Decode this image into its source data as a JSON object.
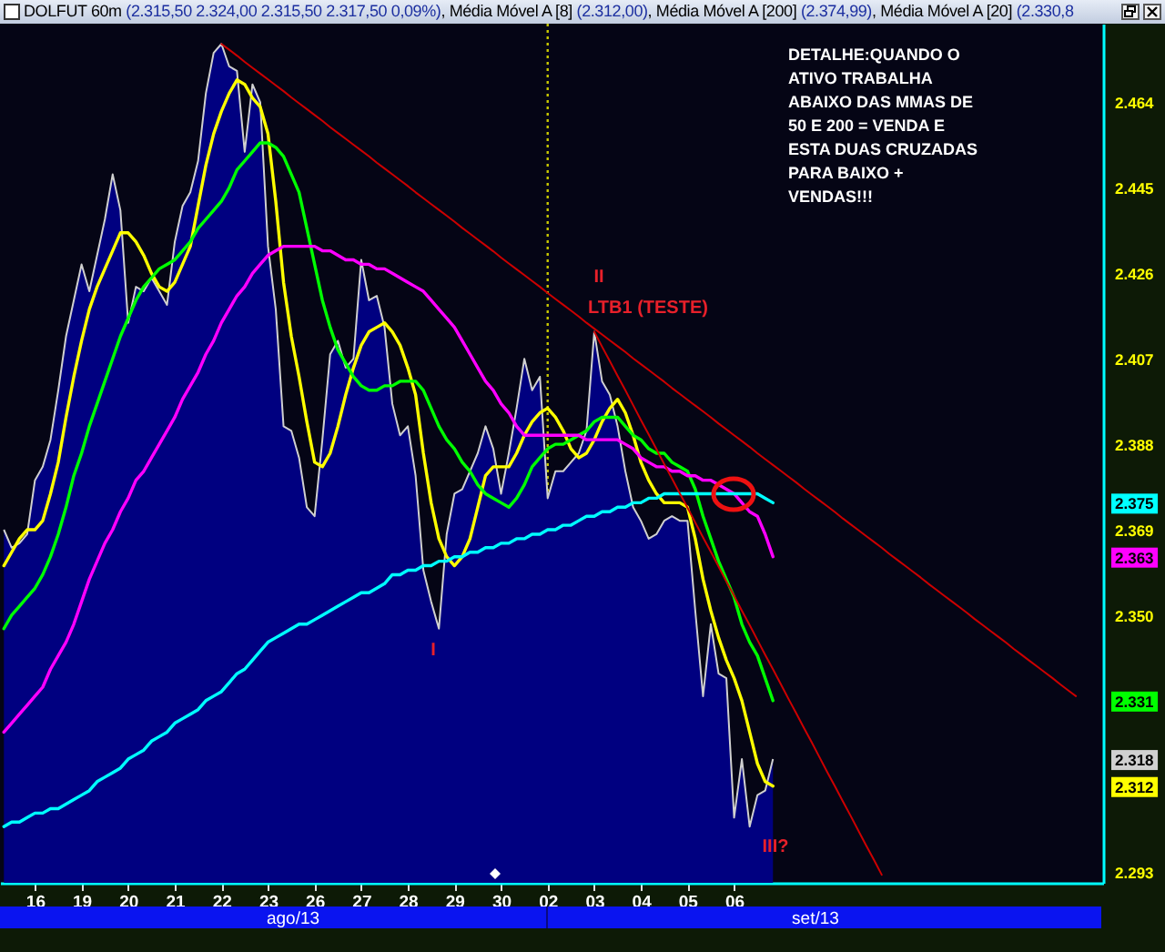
{
  "chart_data": {
    "type": "line",
    "title": "DOLFUT 60m (2.315,50 2.324,00 2.315,50 2.317,50 0,09%), Média Móvel A [8] (2.312,00), Média Móvel A [200] (2.374,99), Média Móvel A [20] (2.330,8",
    "categories": [
      null,
      null,
      null,
      null,
      "16",
      null,
      null,
      null,
      null,
      null,
      "19",
      null,
      null,
      null,
      null,
      null,
      "20",
      null,
      null,
      null,
      null,
      null,
      "21",
      null,
      null,
      null,
      null,
      null,
      "22",
      null,
      null,
      null,
      null,
      null,
      "23",
      null,
      null,
      null,
      null,
      null,
      "26",
      null,
      null,
      null,
      null,
      null,
      "27",
      null,
      null,
      null,
      null,
      null,
      "28",
      null,
      null,
      null,
      null,
      null,
      "29",
      null,
      null,
      null,
      null,
      null,
      "30",
      null,
      null,
      null,
      null,
      null,
      "02",
      null,
      null,
      null,
      null,
      null,
      "03",
      null,
      null,
      null,
      null,
      null,
      "04",
      null,
      null,
      null,
      null,
      null,
      "05",
      null,
      null,
      null,
      null,
      null,
      "06",
      null,
      null,
      null,
      null,
      null,
      null,
      null,
      null,
      null,
      null,
      null,
      null,
      null,
      null,
      null,
      null,
      null,
      null,
      null,
      null,
      null,
      null,
      null,
      null,
      null,
      null,
      null,
      null,
      null,
      null,
      null,
      null,
      null,
      null,
      null,
      null,
      null,
      null,
      null,
      null,
      null,
      null,
      null,
      null,
      null,
      null,
      null
    ],
    "series": [
      {
        "type": "area",
        "color": "#000080",
        "values": [
          2369,
          2365,
          2366,
          2368,
          2380,
          2383,
          2389,
          2400,
          2412,
          2420,
          2428,
          2422,
          2430,
          2438,
          2448,
          2440,
          2415,
          2423,
          2422,
          2425,
          2422,
          2419,
          2433,
          2441,
          2444,
          2451,
          2466,
          2475,
          2477,
          2472,
          2471,
          2453,
          2468,
          2464,
          2432,
          2418,
          2392,
          2391,
          2385,
          2374,
          2372,
          2389,
          2408,
          2411,
          2405,
          2407,
          2429,
          2420,
          2421,
          2414,
          2397,
          2390,
          2392,
          2381,
          2360,
          2353,
          2347,
          2368,
          2377,
          2378,
          2382,
          2386,
          2392,
          2387,
          2377,
          2386,
          2396,
          2407,
          2400,
          2403,
          2376,
          2382,
          2382,
          2384,
          2386,
          2391,
          2413,
          2402,
          2399,
          2392,
          2382,
          2374,
          2371,
          2367,
          2368,
          2371,
          2372,
          2371,
          2371,
          2351,
          2332,
          2348,
          2337,
          2336,
          2305,
          2318,
          2303,
          2310,
          2311,
          2318,
          null,
          null,
          null,
          null,
          null,
          null,
          null,
          null,
          null,
          null,
          null,
          null,
          null,
          null,
          null,
          null,
          null,
          null,
          null,
          null,
          null,
          null,
          null,
          null,
          null,
          null,
          null,
          null,
          null,
          null,
          null,
          null,
          null,
          null,
          null,
          null,
          null,
          null,
          null,
          null,
          null,
          null
        ]
      },
      {
        "color": "#ffff00",
        "values": [
          2361,
          2364,
          2367,
          2369,
          2369,
          2371,
          2377,
          2384,
          2394,
          2403,
          2411,
          2418,
          2423,
          2427,
          2431,
          2435,
          2435,
          2433,
          2430,
          2426,
          2423,
          2422,
          2424,
          2428,
          2432,
          2441,
          2450,
          2457,
          2462,
          2466,
          2469,
          2468,
          2465,
          2463,
          2457,
          2442,
          2424,
          2412,
          2403,
          2393,
          2384,
          2383,
          2386,
          2392,
          2399,
          2405,
          2410,
          2413,
          2414,
          2415,
          2413,
          2410,
          2405,
          2399,
          2386,
          2375,
          2367,
          2363,
          2361,
          2363,
          2367,
          2374,
          2381,
          2383,
          2383,
          2383,
          2386,
          2390,
          2393,
          2395,
          2396,
          2394,
          2391,
          2387,
          2385,
          2386,
          2389,
          2393,
          2396,
          2398,
          2395,
          2390,
          2384,
          2380,
          2377,
          2375,
          2375,
          2375,
          2374,
          2367,
          2358,
          2351,
          2345,
          2340,
          2336,
          2331,
          2324,
          2317,
          2313,
          2312,
          null,
          null,
          null,
          null,
          null,
          null,
          null,
          null,
          null,
          null,
          null,
          null,
          null,
          null,
          null,
          null,
          null,
          null,
          null,
          null,
          null,
          null,
          null,
          null,
          null,
          null,
          null,
          null,
          null,
          null,
          null,
          null,
          null,
          null,
          null,
          null,
          null,
          null,
          null,
          null,
          null,
          null
        ]
      },
      {
        "color": "#00ff00",
        "values": [
          2347,
          2350,
          2352,
          2354,
          2356,
          2359,
          2363,
          2368,
          2374,
          2381,
          2386,
          2392,
          2397,
          2402,
          2407,
          2412,
          2416,
          2420,
          2423,
          2425,
          2427,
          2428,
          2429,
          2431,
          2433,
          2436,
          2438,
          2440,
          2442,
          2445,
          2449,
          2451,
          2453,
          2455,
          2455,
          2454,
          2452,
          2448,
          2444,
          2436,
          2428,
          2420,
          2414,
          2409,
          2406,
          2403,
          2401,
          2400,
          2400,
          2401,
          2401,
          2402,
          2402,
          2402,
          2400,
          2396,
          2392,
          2389,
          2387,
          2384,
          2382,
          2379,
          2377,
          2376,
          2375,
          2374,
          2376,
          2379,
          2383,
          2385,
          2387,
          2388,
          2388,
          2389,
          2390,
          2391,
          2393,
          2394,
          2394,
          2394,
          2392,
          2390,
          2389,
          2387,
          2386,
          2386,
          2384,
          2383,
          2382,
          2378,
          2372,
          2367,
          2362,
          2358,
          2354,
          2348,
          2344,
          2341,
          2336,
          2331,
          null,
          null,
          null,
          null,
          null,
          null,
          null,
          null,
          null,
          null,
          null,
          null,
          null,
          null,
          null,
          null,
          null,
          null,
          null,
          null,
          null,
          null,
          null,
          null,
          null,
          null,
          null,
          null,
          null,
          null,
          null,
          null,
          null,
          null,
          null,
          null,
          null,
          null,
          null,
          null,
          null,
          null
        ]
      },
      {
        "color": "#ff00ff",
        "values": [
          2324,
          2326,
          2328,
          2330,
          2332,
          2334,
          2338,
          2341,
          2344,
          2348,
          2353,
          2358,
          2362,
          2366,
          2369,
          2373,
          2376,
          2380,
          2382,
          2385,
          2388,
          2391,
          2394,
          2398,
          2401,
          2404,
          2408,
          2411,
          2415,
          2418,
          2421,
          2423,
          2426,
          2428,
          2430,
          2431,
          2432,
          2432,
          2432,
          2432,
          2432,
          2431,
          2431,
          2430,
          2429,
          2429,
          2428,
          2428,
          2427,
          2427,
          2426,
          2425,
          2424,
          2423,
          2422,
          2420,
          2418,
          2416,
          2414,
          2411,
          2408,
          2405,
          2402,
          2400,
          2397,
          2395,
          2392,
          2390,
          2390,
          2390,
          2390,
          2390,
          2390,
          2390,
          2390,
          2389,
          2389,
          2389,
          2389,
          2389,
          2388,
          2387,
          2385,
          2384,
          2383,
          2383,
          2382,
          2382,
          2381,
          2381,
          2380,
          2380,
          2379,
          2378,
          2377,
          2375,
          2373,
          2372,
          2368,
          2363,
          null,
          null,
          null,
          null,
          null,
          null,
          null,
          null,
          null,
          null,
          null,
          null,
          null,
          null,
          null,
          null,
          null,
          null,
          null,
          null,
          null,
          null,
          null,
          null,
          null,
          null,
          null,
          null,
          null,
          null,
          null,
          null,
          null,
          null,
          null,
          null,
          null,
          null,
          null,
          null,
          null,
          null
        ]
      },
      {
        "color": "#00ffff",
        "values": [
          2303,
          2304,
          2304,
          2305,
          2306,
          2306,
          2307,
          2307,
          2308,
          2309,
          2310,
          2311,
          2313,
          2314,
          2315,
          2316,
          2318,
          2319,
          2320,
          2322,
          2323,
          2324,
          2326,
          2327,
          2328,
          2329,
          2331,
          2332,
          2333,
          2335,
          2337,
          2338,
          2340,
          2342,
          2344,
          2345,
          2346,
          2347,
          2348,
          2348,
          2349,
          2350,
          2351,
          2352,
          2353,
          2354,
          2355,
          2355,
          2356,
          2357,
          2359,
          2359,
          2360,
          2360,
          2361,
          2361,
          2362,
          2362,
          2363,
          2363,
          2364,
          2364,
          2365,
          2365,
          2366,
          2366,
          2367,
          2367,
          2368,
          2368,
          2369,
          2369,
          2370,
          2370,
          2371,
          2372,
          2372,
          2373,
          2373,
          2374,
          2374,
          2375,
          2375,
          2376,
          2376,
          2377,
          2377,
          2377,
          2377,
          2377,
          2377,
          2377,
          2377,
          2377,
          2377,
          2377,
          2377,
          2377,
          2376,
          2375,
          null,
          null,
          null,
          null,
          null,
          null,
          null,
          null,
          null,
          null,
          null,
          null,
          null,
          null,
          null,
          null,
          null,
          null,
          null,
          null,
          null,
          null,
          null,
          null,
          null,
          null,
          null,
          null,
          null,
          null,
          null,
          null,
          null,
          null,
          null,
          null,
          null,
          null,
          null,
          null,
          null,
          null
        ]
      },
      {
        "color": "#cc0000",
        "values": [
          null,
          null,
          null,
          null,
          null,
          null,
          null,
          null,
          null,
          null,
          null,
          null,
          null,
          null,
          null,
          null,
          null,
          null,
          null,
          null,
          null,
          null,
          null,
          null,
          null,
          null,
          null,
          null,
          2477.0,
          2475.7,
          2474.4,
          2473.0,
          2471.7,
          2470.4,
          2469.1,
          2467.8,
          2466.5,
          2465.1,
          2463.8,
          2462.5,
          2461.2,
          2459.9,
          2458.5,
          2457.2,
          2455.9,
          2454.6,
          2453.3,
          2452.0,
          2450.6,
          2449.3,
          2448.0,
          2446.7,
          2445.4,
          2444.0,
          2442.7,
          2441.4,
          2440.1,
          2438.8,
          2437.5,
          2436.1,
          2434.8,
          2433.5,
          2432.2,
          2430.9,
          2429.5,
          2428.2,
          2426.9,
          2425.6,
          2424.3,
          2423.0,
          2421.6,
          2420.3,
          2419.0,
          2417.7,
          2416.4,
          2415.0,
          2413.7,
          2412.4,
          2411.1,
          2409.8,
          2408.5,
          2407.1,
          2405.8,
          2404.5,
          2403.2,
          2401.9,
          2400.5,
          2399.2,
          2397.9,
          2396.6,
          2395.3,
          2394.0,
          2392.6,
          2391.3,
          2390.0,
          2388.7,
          2387.4,
          2386.0,
          2384.7,
          2383.4,
          2382.1,
          2380.8,
          2379.5,
          2378.1,
          2376.8,
          2375.5,
          2374.2,
          2372.9,
          2371.5,
          2370.2,
          2368.9,
          2367.6,
          2366.3,
          2365.0,
          2363.6,
          2362.3,
          2361.0,
          2359.7,
          2358.4,
          2357.0,
          2355.7,
          2354.4,
          2353.1,
          2351.8,
          2350.5,
          2349.1,
          2347.8,
          2346.5,
          2345.2,
          2343.9,
          2342.5,
          2341.2,
          2339.9,
          2338.6,
          2337.3,
          2336.0,
          2334.6,
          2333.3,
          2332.0,
          null,
          null,
          null
        ]
      },
      {
        "color": "#cc0000",
        "values": [
          null,
          null,
          null,
          null,
          null,
          null,
          null,
          null,
          null,
          null,
          null,
          null,
          null,
          null,
          null,
          null,
          null,
          null,
          null,
          null,
          null,
          null,
          null,
          null,
          null,
          null,
          null,
          null,
          null,
          null,
          null,
          null,
          null,
          null,
          null,
          null,
          null,
          null,
          null,
          null,
          null,
          null,
          null,
          null,
          null,
          null,
          null,
          null,
          null,
          null,
          null,
          null,
          null,
          null,
          null,
          null,
          null,
          null,
          null,
          null,
          null,
          null,
          null,
          null,
          null,
          null,
          null,
          null,
          null,
          null,
          null,
          null,
          null,
          null,
          null,
          null,
          2413.0,
          2409.7,
          2406.5,
          2403.2,
          2400.0,
          2396.7,
          2393.4,
          2390.2,
          2386.9,
          2383.6,
          2380.4,
          2377.1,
          2373.9,
          2370.6,
          2367.3,
          2364.1,
          2360.8,
          2357.5,
          2354.3,
          2351.0,
          2347.8,
          2344.5,
          2341.2,
          2338.0,
          2334.7,
          2331.4,
          2328.2,
          2324.9,
          2321.7,
          2318.4,
          2315.1,
          2311.9,
          2308.6,
          2305.4,
          2302.1,
          2298.8,
          2295.6,
          2292.3,
          null,
          null,
          null,
          null,
          null,
          null,
          null,
          null,
          null,
          null,
          null,
          null,
          null,
          null,
          null,
          null,
          null,
          null,
          null,
          null,
          null,
          null,
          null,
          null,
          null,
          null,
          null,
          null
        ]
      }
    ],
    "ylim": [
      2290.5,
      2481.5
    ],
    "yticks": [
      {
        "value": 2293,
        "label": "2.293"
      },
      {
        "value": 2312,
        "label": "2.312"
      },
      {
        "value": 2318,
        "label": "2.318"
      },
      {
        "value": 2331,
        "label": "2.331"
      },
      {
        "value": 2350,
        "label": "2.350"
      },
      {
        "value": 2363,
        "label": "2.363"
      },
      {
        "value": 2369,
        "label": "2.369"
      },
      {
        "value": 2375,
        "label": "2.375"
      },
      {
        "value": 2388,
        "label": "2.388"
      },
      {
        "value": 2407,
        "label": "2.407"
      },
      {
        "value": 2426,
        "label": "2.426"
      },
      {
        "value": 2445,
        "label": "2.445"
      },
      {
        "value": 2464,
        "label": "2.464"
      }
    ],
    "ref_lines": [
      {
        "axis": "x",
        "value": "02",
        "color": "#c8c800",
        "line_style": "dotted"
      }
    ],
    "annotations": [
      "I",
      "II",
      "LTB1 (TESTE)",
      "III?",
      "DETALHE:QUANDO O\nATIVO TRABALHA\nABAIXO DAS MMAS DE\n50 E 200 = VENDA E\nESTA DUAS CRUZADAS\nPARA BAIXO +\nVENDAS!!!",
      "ago/13",
      "set/13"
    ]
  }
}
